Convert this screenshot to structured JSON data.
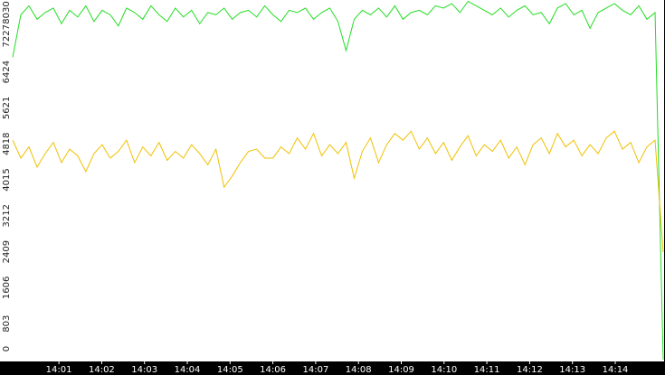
{
  "chart_data": {
    "type": "line",
    "x": [
      -0.08,
      0.11,
      0.3,
      0.49,
      0.68,
      0.87,
      1.06,
      1.25,
      1.44,
      1.63,
      1.82,
      2.01,
      2.2,
      2.39,
      2.58,
      2.77,
      2.96,
      3.15,
      3.34,
      3.53,
      3.72,
      3.91,
      4.1,
      4.29,
      4.48,
      4.67,
      4.86,
      5.05,
      5.24,
      5.43,
      5.62,
      5.81,
      6.0,
      6.19,
      6.38,
      6.57,
      6.76,
      6.95,
      7.14,
      7.33,
      7.52,
      7.71,
      7.9,
      8.09,
      8.28,
      8.47,
      8.66,
      8.85,
      9.04,
      9.23,
      9.42,
      9.61,
      9.8,
      9.99,
      10.18,
      10.37,
      10.56,
      10.75,
      10.94,
      11.13,
      11.32,
      11.51,
      11.7,
      11.89,
      12.08,
      12.27,
      12.46,
      12.65,
      12.84,
      13.03,
      13.22,
      13.41,
      13.6,
      13.79,
      13.98,
      14.17,
      14.36,
      14.55,
      14.74,
      14.93,
      15.12
    ],
    "series": [
      {
        "color": "#22dd22",
        "values": [
          6750,
          7700,
          7900,
          7600,
          7750,
          7850,
          7500,
          7800,
          7650,
          7900,
          7550,
          7800,
          7700,
          7450,
          7850,
          7750,
          7600,
          7900,
          7700,
          7550,
          7850,
          7650,
          7800,
          7500,
          7750,
          7700,
          7850,
          7600,
          7750,
          7800,
          7650,
          7900,
          7700,
          7550,
          7800,
          7750,
          7850,
          7600,
          7750,
          7850,
          7550,
          6900,
          7600,
          7800,
          7700,
          7850,
          7650,
          7900,
          7600,
          7750,
          7800,
          7700,
          7900,
          7850,
          7950,
          7750,
          8000,
          7900,
          7800,
          7700,
          7850,
          7650,
          7800,
          7900,
          7700,
          7750,
          7500,
          7850,
          7950,
          7700,
          7800,
          7400,
          7750,
          7850,
          7950,
          7800,
          7700,
          7900,
          7600,
          7750,
          0
        ]
      },
      {
        "color": "#f0c000",
        "values": [
          4900,
          4500,
          4750,
          4300,
          4600,
          4850,
          4400,
          4700,
          4550,
          4200,
          4600,
          4800,
          4500,
          4650,
          4900,
          4400,
          4750,
          4550,
          4850,
          4450,
          4650,
          4500,
          4800,
          4600,
          4350,
          4700,
          3850,
          4100,
          4400,
          4650,
          4700,
          4500,
          4500,
          4750,
          4600,
          4950,
          4700,
          5050,
          4550,
          4800,
          4600,
          4850,
          4050,
          4650,
          4950,
          4400,
          4800,
          5050,
          4900,
          5100,
          4700,
          4950,
          4600,
          4850,
          4450,
          4750,
          5000,
          4550,
          4800,
          4650,
          4900,
          4500,
          4750,
          4350,
          4800,
          4950,
          4600,
          5050,
          4750,
          4900,
          4550,
          4800,
          4600,
          4950,
          5100,
          4700,
          4850,
          4400,
          4750,
          4900,
          2400
        ]
      }
    ],
    "xlim": [
      -0.08,
      15.12
    ],
    "xticks": [
      {
        "value": 1,
        "label": "14:01"
      },
      {
        "value": 2,
        "label": "14:02"
      },
      {
        "value": 3,
        "label": "14:03"
      },
      {
        "value": 4,
        "label": "14:04"
      },
      {
        "value": 5,
        "label": "14:05"
      },
      {
        "value": 6,
        "label": "14:06"
      },
      {
        "value": 7,
        "label": "14:07"
      },
      {
        "value": 8,
        "label": "14:08"
      },
      {
        "value": 9,
        "label": "14:09"
      },
      {
        "value": 10,
        "label": "14:10"
      },
      {
        "value": 11,
        "label": "14:11"
      },
      {
        "value": 12,
        "label": "14:12"
      },
      {
        "value": 13,
        "label": "14:13"
      },
      {
        "value": 14,
        "label": "14:14"
      }
    ],
    "ylim": [
      0,
      8030
    ],
    "yticks": [
      0,
      803,
      1606,
      2409,
      3212,
      4015,
      4818,
      5621,
      6424,
      7227,
      8030
    ]
  }
}
